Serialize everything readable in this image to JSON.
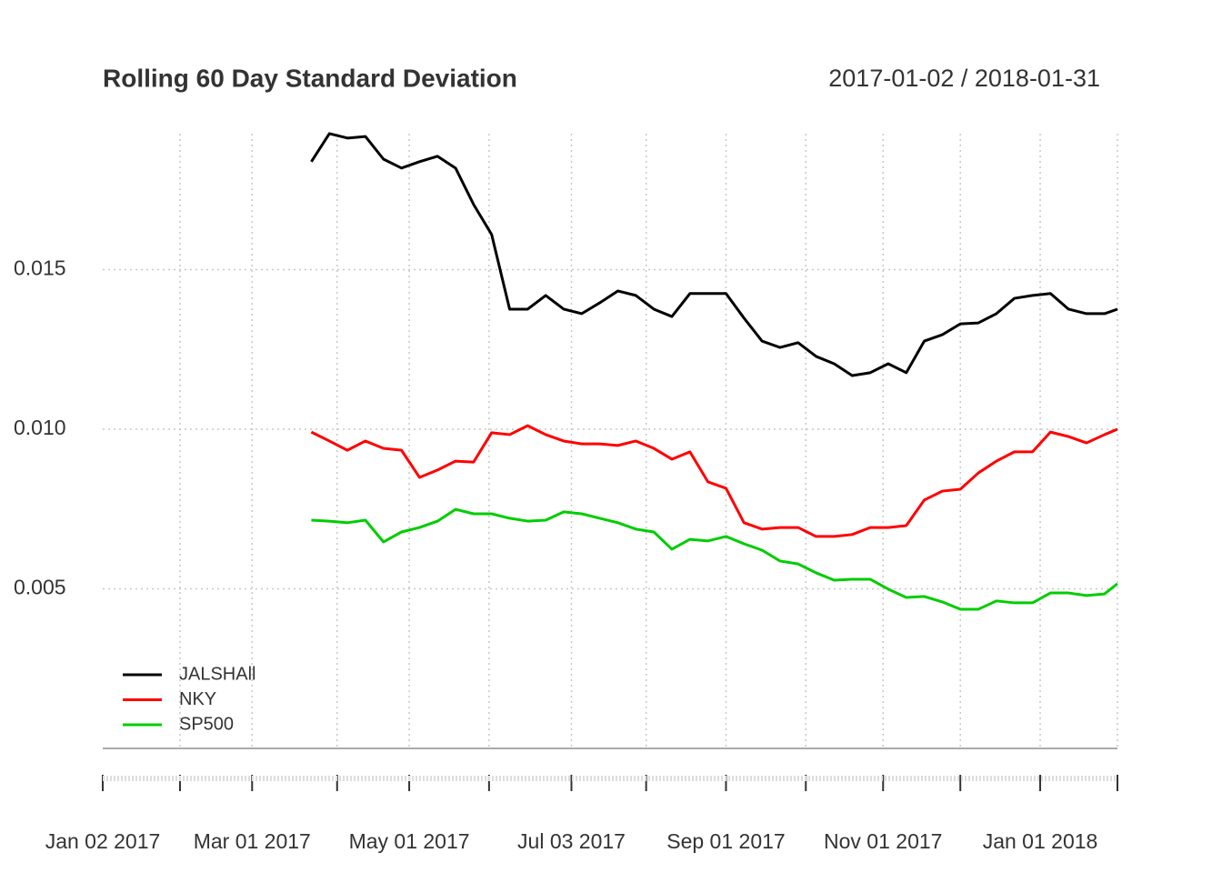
{
  "chart_data": {
    "type": "line",
    "title": "Rolling 60 Day Standard Deviation",
    "subtitle": "2017-01-02 / 2018-01-31",
    "x": [
      "2017-03-24",
      "2017-03-31",
      "2017-04-07",
      "2017-04-14",
      "2017-04-21",
      "2017-04-28",
      "2017-05-05",
      "2017-05-12",
      "2017-05-19",
      "2017-05-26",
      "2017-06-02",
      "2017-06-09",
      "2017-06-16",
      "2017-06-23",
      "2017-06-30",
      "2017-07-07",
      "2017-07-14",
      "2017-07-21",
      "2017-07-28",
      "2017-08-04",
      "2017-08-11",
      "2017-08-18",
      "2017-08-25",
      "2017-09-01",
      "2017-09-08",
      "2017-09-15",
      "2017-09-22",
      "2017-09-29",
      "2017-10-06",
      "2017-10-13",
      "2017-10-20",
      "2017-10-27",
      "2017-11-03",
      "2017-11-10",
      "2017-11-17",
      "2017-11-24",
      "2017-12-01",
      "2017-12-08",
      "2017-12-15",
      "2017-12-22",
      "2017-12-29",
      "2018-01-05",
      "2018-01-12",
      "2018-01-19",
      "2018-01-26",
      "2018-01-31"
    ],
    "series": [
      {
        "name": "JALSHAll",
        "color": "#000000",
        "values": [
          0.01838,
          0.01926,
          0.01912,
          0.01917,
          0.01846,
          0.01818,
          0.01838,
          0.01855,
          0.01818,
          0.01704,
          0.0161,
          0.01376,
          0.01376,
          0.01419,
          0.01376,
          0.01362,
          0.01396,
          0.01433,
          0.01419,
          0.01376,
          0.01353,
          0.01425,
          0.01425,
          0.01425,
          0.01348,
          0.01276,
          0.01256,
          0.01271,
          0.01228,
          0.01205,
          0.01168,
          0.01177,
          0.01205,
          0.01177,
          0.01276,
          0.01296,
          0.0133,
          0.01333,
          0.01362,
          0.0141,
          0.01419,
          0.01425,
          0.01376,
          0.01362,
          0.01362,
          0.01376
        ]
      },
      {
        "name": "NKY",
        "color": "#ff0000",
        "values": [
          0.00991,
          0.00963,
          0.00934,
          0.00963,
          0.0094,
          0.00934,
          0.00849,
          0.00872,
          0.009,
          0.00897,
          0.00989,
          0.00983,
          0.01011,
          0.00983,
          0.00963,
          0.00954,
          0.00954,
          0.00949,
          0.00963,
          0.0094,
          0.00906,
          0.00929,
          0.00835,
          0.00815,
          0.00707,
          0.00687,
          0.00692,
          0.00692,
          0.00664,
          0.00664,
          0.0067,
          0.00692,
          0.00692,
          0.00698,
          0.00778,
          0.00806,
          0.00812,
          0.00863,
          0.009,
          0.00929,
          0.00929,
          0.00991,
          0.00977,
          0.00957,
          0.00983,
          0.01
        ]
      },
      {
        "name": "SP500",
        "color": "#00cd00",
        "values": [
          0.00715,
          0.00712,
          0.00707,
          0.00715,
          0.00647,
          0.00678,
          0.00692,
          0.00712,
          0.00749,
          0.00735,
          0.00735,
          0.00721,
          0.00712,
          0.00715,
          0.00741,
          0.00735,
          0.00721,
          0.00707,
          0.00687,
          0.00678,
          0.00624,
          0.00655,
          0.0065,
          0.00664,
          0.00641,
          0.00621,
          0.00587,
          0.00578,
          0.0055,
          0.00527,
          0.0053,
          0.0053,
          0.00499,
          0.00473,
          0.00476,
          0.00459,
          0.00436,
          0.00436,
          0.00462,
          0.00456,
          0.00456,
          0.00487,
          0.00487,
          0.00479,
          0.00484,
          0.00516
        ]
      }
    ],
    "xlim": [
      "2017-01-02",
      "2018-01-31"
    ],
    "xticks": [
      {
        "value": "2017-01-02",
        "label": "Jan 02 2017"
      },
      {
        "value": "2017-02-01",
        "label": null
      },
      {
        "value": "2017-03-01",
        "label": "Mar 01 2017"
      },
      {
        "value": "2017-04-03",
        "label": null
      },
      {
        "value": "2017-05-01",
        "label": "May 01 2017"
      },
      {
        "value": "2017-06-01",
        "label": null
      },
      {
        "value": "2017-07-03",
        "label": "Jul 03 2017"
      },
      {
        "value": "2017-08-01",
        "label": null
      },
      {
        "value": "2017-09-01",
        "label": "Sep 01 2017"
      },
      {
        "value": "2017-10-02",
        "label": null
      },
      {
        "value": "2017-11-01",
        "label": "Nov 01 2017"
      },
      {
        "value": "2017-12-01",
        "label": null
      },
      {
        "value": "2018-01-01",
        "label": "Jan 01 2018"
      },
      {
        "value": "2018-01-31",
        "label": null
      }
    ],
    "ylim": [
      0,
      0.0194
    ],
    "yticks": [
      0.005,
      {
        "value": 0.01,
        "label": "0.010"
      },
      0.015
    ],
    "grid": true,
    "legend": "bottom-left"
  }
}
